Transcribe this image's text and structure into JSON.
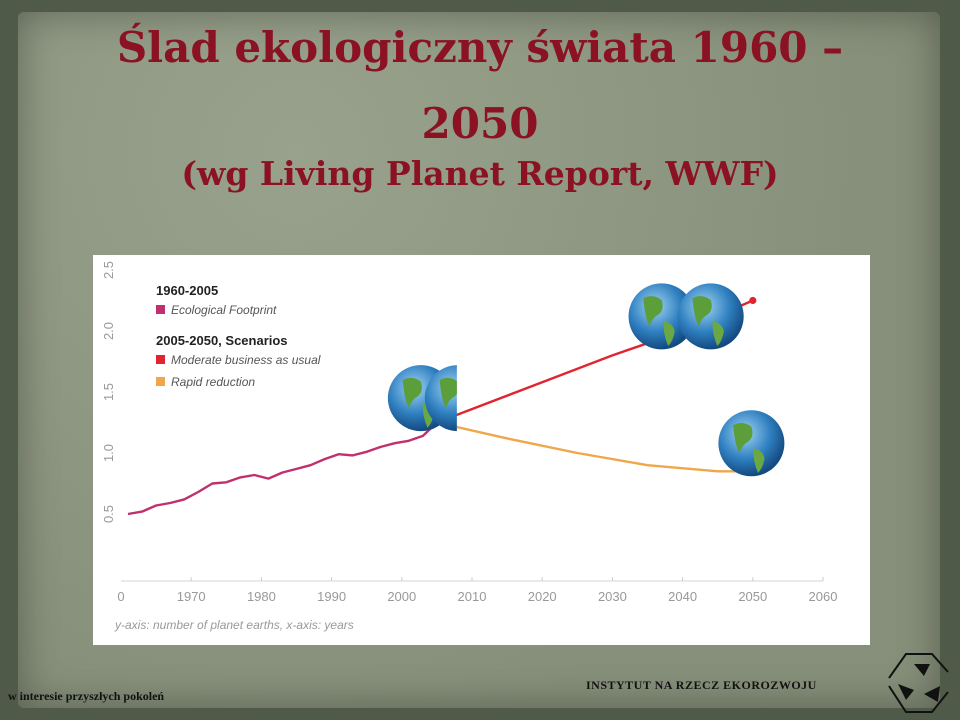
{
  "slide": {
    "title_line1": "Ślad ekologiczny świata 1960 –",
    "title_line2": "2050",
    "subtitle": "(wg Living Planet Report, WWF)",
    "footer_left": "w interesie przyszłych pokoleń",
    "footer_right": "INSTYTUT NA RZECZ EKOROZWOJU"
  },
  "icons": {
    "earth": "earth-globe-icon",
    "logo": "institute-logo-icon"
  },
  "colors": {
    "footprint": "#c0306f",
    "moderate": "#e02531",
    "rapid": "#f0a64a",
    "title": "#8a1222"
  },
  "chart_data": {
    "type": "line",
    "xlim": [
      1960,
      2060
    ],
    "ylim": [
      0,
      2.5
    ],
    "x_ticks": [
      "1970",
      "1980",
      "1990",
      "2000",
      "2010",
      "2020",
      "2030",
      "2040",
      "2050",
      "2060"
    ],
    "y_ticks": [
      "0.5",
      "1.0",
      "1.5",
      "2.0",
      "2.5"
    ],
    "caption": "y-axis: number of planet earths, x-axis: years",
    "legend": {
      "group1_title": "1960-2005",
      "group1_item": "Ecological Footprint",
      "group2_title": "2005-2050, Scenarios",
      "group2_item1": "Moderate business as usual",
      "group2_item2": "Rapid reduction"
    },
    "series": [
      {
        "name": "Ecological Footprint",
        "color": "#c0306f",
        "points": [
          [
            1961,
            0.5
          ],
          [
            1963,
            0.52
          ],
          [
            1965,
            0.57
          ],
          [
            1967,
            0.59
          ],
          [
            1969,
            0.62
          ],
          [
            1971,
            0.68
          ],
          [
            1973,
            0.75
          ],
          [
            1975,
            0.76
          ],
          [
            1977,
            0.8
          ],
          [
            1979,
            0.82
          ],
          [
            1981,
            0.79
          ],
          [
            1983,
            0.84
          ],
          [
            1985,
            0.87
          ],
          [
            1987,
            0.9
          ],
          [
            1989,
            0.95
          ],
          [
            1991,
            0.99
          ],
          [
            1993,
            0.98
          ],
          [
            1995,
            1.01
          ],
          [
            1997,
            1.05
          ],
          [
            1999,
            1.08
          ],
          [
            2001,
            1.1
          ],
          [
            2003,
            1.14
          ],
          [
            2005,
            1.25
          ]
        ]
      },
      {
        "name": "Moderate business as usual",
        "color": "#e02531",
        "points": [
          [
            2005,
            1.25
          ],
          [
            2030,
            1.8
          ],
          [
            2040,
            2.0
          ],
          [
            2050,
            2.25
          ]
        ],
        "markers": [
          [
            2005,
            1.25
          ],
          [
            2040,
            2.0
          ],
          [
            2050,
            2.25
          ]
        ]
      },
      {
        "name": "Rapid reduction",
        "color": "#f0a64a",
        "points": [
          [
            2005,
            1.25
          ],
          [
            2015,
            1.12
          ],
          [
            2025,
            1.0
          ],
          [
            2035,
            0.9
          ],
          [
            2045,
            0.85
          ],
          [
            2050,
            0.85
          ]
        ],
        "markers": [
          [
            2050,
            0.85
          ]
        ]
      }
    ],
    "globes": [
      {
        "x": 2003,
        "y": 1.35,
        "count": 1.3
      },
      {
        "x": 2044,
        "y": 2.15,
        "count": 2
      },
      {
        "x": 2050,
        "y": 1.05,
        "count": 1
      }
    ]
  }
}
